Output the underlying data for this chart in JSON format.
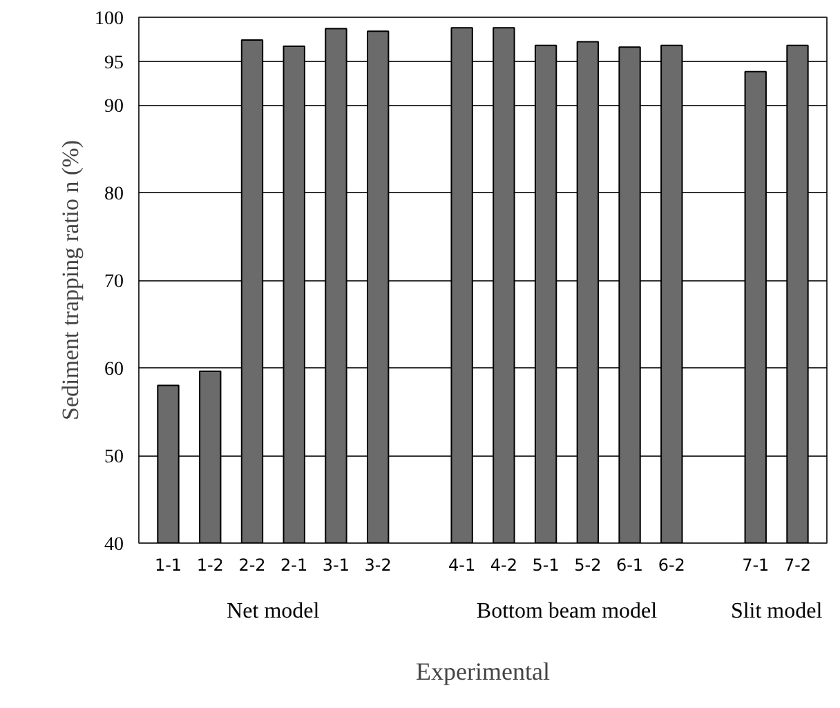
{
  "chart_data": {
    "type": "bar",
    "categories": [
      "1-1",
      "1-2",
      "2-2",
      "2-1",
      "3-1",
      "3-2",
      null,
      "4-1",
      "4-2",
      "5-1",
      "5-2",
      "6-1",
      "6-2",
      null,
      "7-1",
      "7-2"
    ],
    "values": [
      58.0,
      59.6,
      97.4,
      96.7,
      98.7,
      98.4,
      null,
      98.8,
      98.8,
      96.8,
      97.2,
      96.6,
      96.8,
      null,
      93.8,
      96.8
    ],
    "color": "#6b6b6b",
    "ylabel": "Sediment trapping ratio n (%)",
    "xlabel": "Experimental",
    "annotations": [
      "Net model",
      "Bottom beam model",
      "Slit model"
    ],
    "ylim": [
      40,
      100
    ],
    "yticks": [
      40,
      50,
      60,
      70,
      80,
      90,
      95,
      100
    ],
    "grid": "y"
  }
}
